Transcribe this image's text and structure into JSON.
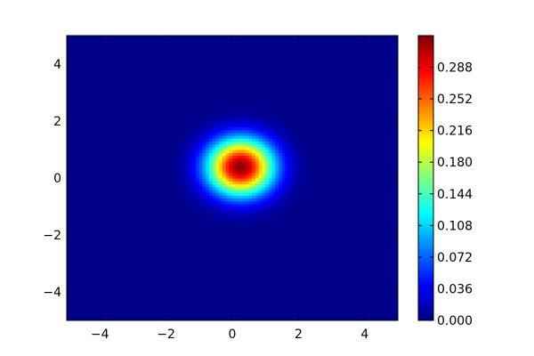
{
  "chart_data": {
    "type": "heatmap",
    "title": "",
    "xlabel": "",
    "ylabel": "",
    "xlim": [
      -5,
      5
    ],
    "ylim": [
      -5,
      5
    ],
    "x_ticks": [
      -4,
      -2,
      0,
      2,
      4
    ],
    "y_ticks": [
      -4,
      -2,
      0,
      2,
      4
    ],
    "x_tick_labels": [
      "−4",
      "−2",
      "0",
      "2",
      "4"
    ],
    "y_tick_labels": [
      "−4",
      "−2",
      "0",
      "2",
      "4"
    ],
    "grid": false,
    "colormap": "jet",
    "surface": {
      "shape": "gaussian",
      "peak_x": 0.25,
      "peak_y": 0.4,
      "peak_value": 0.32,
      "sigma": 0.7
    },
    "colorbar": {
      "range": [
        0.0,
        0.324
      ],
      "ticks": [
        0.0,
        0.036,
        0.072,
        0.108,
        0.144,
        0.18,
        0.216,
        0.252,
        0.288
      ],
      "tick_labels": [
        "0.000",
        "0.036",
        "0.072",
        "0.108",
        "0.144",
        "0.180",
        "0.216",
        "0.252",
        "0.288"
      ]
    }
  }
}
